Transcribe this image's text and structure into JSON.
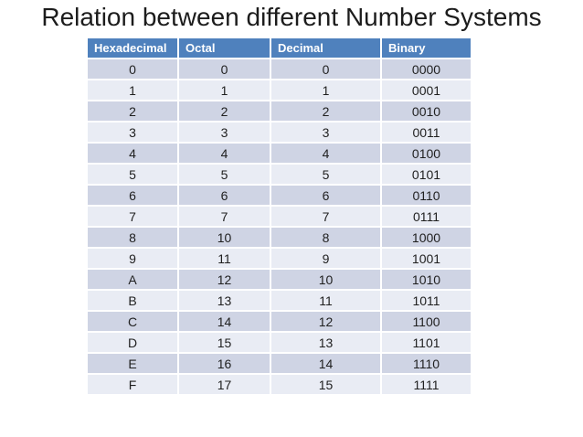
{
  "title": "Relation between different Number Systems",
  "table": {
    "headers": [
      "Hexadecimal",
      "Octal",
      "Decimal",
      "Binary"
    ],
    "rows": [
      [
        "0",
        "0",
        "0",
        "0000"
      ],
      [
        "1",
        "1",
        "1",
        "0001"
      ],
      [
        "2",
        "2",
        "2",
        "0010"
      ],
      [
        "3",
        "3",
        "3",
        "0011"
      ],
      [
        "4",
        "4",
        "4",
        "0100"
      ],
      [
        "5",
        "5",
        "5",
        "0101"
      ],
      [
        "6",
        "6",
        "6",
        "0110"
      ],
      [
        "7",
        "7",
        "7",
        "0111"
      ],
      [
        "8",
        "10",
        "8",
        "1000"
      ],
      [
        "9",
        "11",
        "9",
        "1001"
      ],
      [
        "A",
        "12",
        "10",
        "1010"
      ],
      [
        "B",
        "13",
        "11",
        "1011"
      ],
      [
        "C",
        "14",
        "12",
        "1100"
      ],
      [
        "D",
        "15",
        "13",
        "1101"
      ],
      [
        "E",
        "16",
        "14",
        "1110"
      ],
      [
        "F",
        "17",
        "15",
        "1111"
      ]
    ],
    "colors": {
      "header_bg": "#4F81BD",
      "header_text": "#FFFFFF",
      "band_dark": "#CFD4E4",
      "band_light": "#E9ECF4",
      "cell_text": "#1F1F1F",
      "title_text": "#1C1C1C"
    }
  }
}
